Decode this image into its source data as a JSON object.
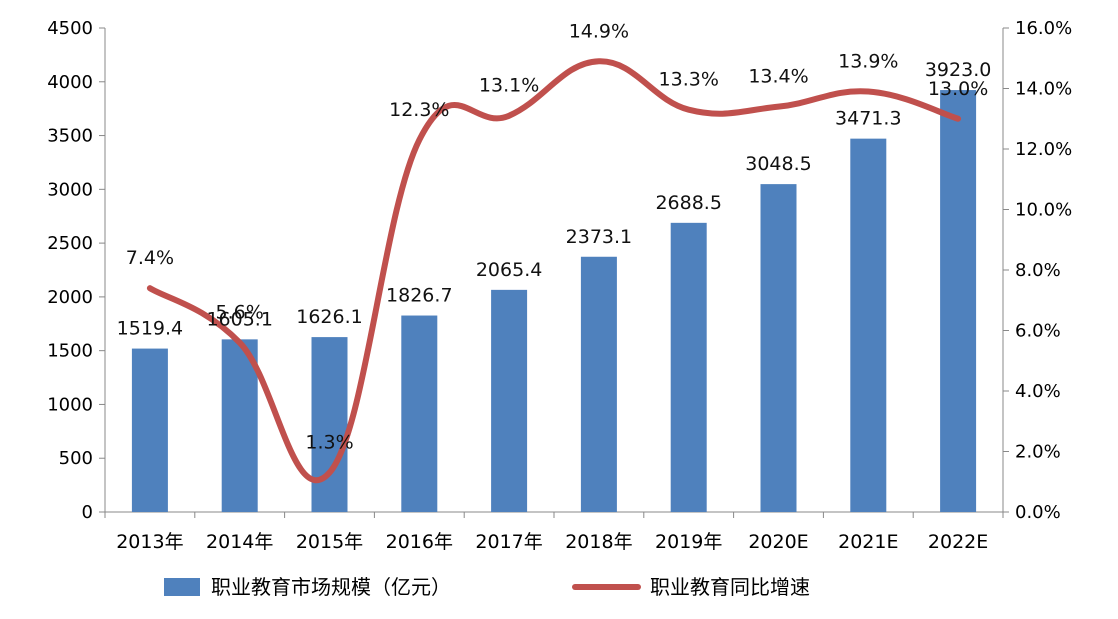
{
  "chart_data": {
    "type": "bar",
    "categories": [
      "2013年",
      "2014年",
      "2015年",
      "2016年",
      "2017年",
      "2018年",
      "2019年",
      "2020E",
      "2021E",
      "2022E"
    ],
    "series": [
      {
        "name": "职业教育市场规模（亿元）",
        "type": "bar",
        "axis": "left",
        "color": "#4F81BD",
        "values": [
          1519.4,
          1605.1,
          1626.1,
          1826.7,
          2065.4,
          2373.1,
          2688.5,
          3048.5,
          3471.3,
          3923.0
        ],
        "labels": [
          "1519.4",
          "1605.1",
          "1626.1",
          "1826.7",
          "2065.4",
          "2373.1",
          "2688.5",
          "3048.5",
          "3471.3",
          "3923.0"
        ]
      },
      {
        "name": "职业教育同比增速",
        "type": "line",
        "axis": "right",
        "color": "#C0504D",
        "smooth": true,
        "values": [
          7.4,
          5.6,
          1.3,
          12.3,
          13.1,
          14.9,
          13.3,
          13.4,
          13.9,
          13.0
        ],
        "labels": [
          "7.4%",
          "5.6%",
          "1.3%",
          "12.3%",
          "13.1%",
          "14.9%",
          "13.3%",
          "13.4%",
          "13.9%",
          "13.0%"
        ]
      }
    ],
    "left_axis": {
      "ylim": [
        0,
        4500
      ],
      "ticks": [
        0,
        500,
        1000,
        1500,
        2000,
        2500,
        3000,
        3500,
        4000,
        4500
      ],
      "tick_labels": [
        "0",
        "500",
        "1000",
        "1500",
        "2000",
        "2500",
        "3000",
        "3500",
        "4000",
        "4500"
      ]
    },
    "right_axis": {
      "ylim": [
        0,
        16
      ],
      "ticks": [
        0,
        2,
        4,
        6,
        8,
        10,
        12,
        14,
        16
      ],
      "tick_labels": [
        "0.0%",
        "2.0%",
        "4.0%",
        "6.0%",
        "8.0%",
        "10.0%",
        "12.0%",
        "14.0%",
        "16.0%"
      ]
    },
    "title": "",
    "xlabel": "",
    "ylabel": "",
    "grid": false,
    "legend_position": "bottom"
  },
  "legend": {
    "items": [
      {
        "label": "职业教育市场规模（亿元）"
      },
      {
        "label": "职业教育同比增速"
      }
    ]
  }
}
